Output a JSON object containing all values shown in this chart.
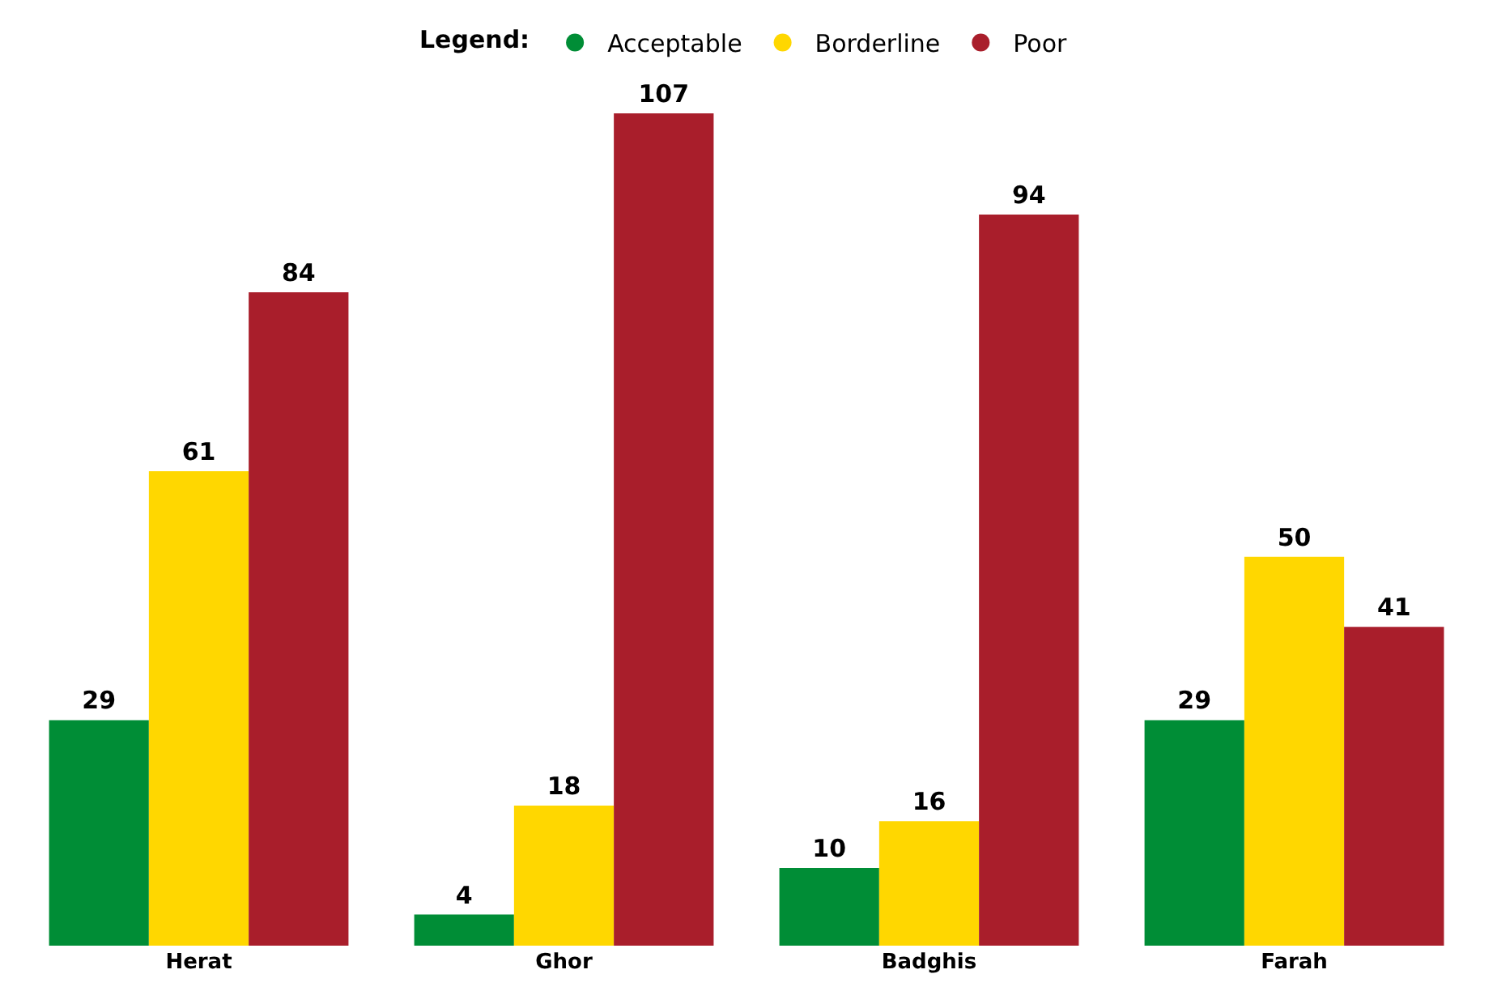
{
  "chart_data": {
    "type": "bar",
    "legend_title": "Legend:",
    "legend": "top",
    "categories": [
      "Herat",
      "Ghor",
      "Badghis",
      "Farah"
    ],
    "series": [
      {
        "name": "Acceptable",
        "color": "#008d36",
        "values": [
          29,
          4,
          10,
          29
        ]
      },
      {
        "name": "Borderline",
        "color": "#ffd700",
        "values": [
          61,
          18,
          16,
          50
        ]
      },
      {
        "name": "Poor",
        "color": "#a91e2b",
        "values": [
          84,
          107,
          94,
          41
        ]
      }
    ],
    "data_labels": true
  }
}
